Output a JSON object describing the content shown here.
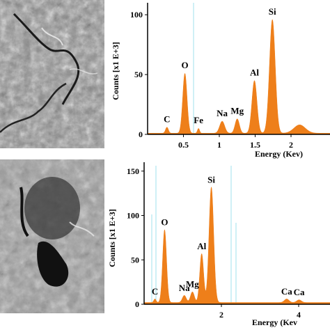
{
  "images": {
    "top_alt": "SEM micrograph (fracture surface)",
    "bottom_alt": "SEM micrograph (porous surface)"
  },
  "chart_data": [
    {
      "type": "area",
      "xlabel": "Energy (Kev)",
      "ylabel": "Counts [x1 E+3]",
      "xlim": [
        0,
        2.2
      ],
      "ylim": [
        0,
        110
      ],
      "xticks": [
        0.5,
        1,
        1.5,
        2
      ],
      "xtick_labels": [
        "0.5",
        "1",
        "1.5",
        "2"
      ],
      "yticks": [
        0,
        50,
        100
      ],
      "ytick_labels": [
        "0",
        "50",
        "100"
      ],
      "grid": false,
      "color": "#ee7f1a",
      "peaks": [
        {
          "x": 0.27,
          "y": 5,
          "w": 0.02
        },
        {
          "x": 0.52,
          "y": 50,
          "w": 0.03
        },
        {
          "x": 0.71,
          "y": 4,
          "w": 0.015
        },
        {
          "x": 1.04,
          "y": 10,
          "w": 0.035
        },
        {
          "x": 1.25,
          "y": 12,
          "w": 0.03
        },
        {
          "x": 1.49,
          "y": 44,
          "w": 0.035
        },
        {
          "x": 1.74,
          "y": 95,
          "w": 0.04
        },
        {
          "x": 2.12,
          "y": 7,
          "w": 0.08
        }
      ],
      "baseline": 1,
      "annotations": [
        {
          "label": "C",
          "x": 0.27,
          "y": 5
        },
        {
          "label": "O",
          "x": 0.52,
          "y": 50
        },
        {
          "label": "Fe",
          "x": 0.71,
          "y": 4
        },
        {
          "label": "Na",
          "x": 1.04,
          "y": 10
        },
        {
          "label": "Mg",
          "x": 1.25,
          "y": 12
        },
        {
          "label": "Al",
          "x": 1.49,
          "y": 44
        },
        {
          "label": "Si",
          "x": 1.74,
          "y": 95
        }
      ]
    },
    {
      "type": "area",
      "xlabel": "Energy (Kev",
      "ylabel": "Counts [x1 E+3]",
      "xlim": [
        0,
        4.8
      ],
      "ylim": [
        0,
        160
      ],
      "xticks": [
        2,
        4
      ],
      "xtick_labels": [
        "2",
        "4"
      ],
      "yticks": [
        0,
        50,
        100,
        150
      ],
      "ytick_labels": [
        "0",
        "50",
        "100",
        "150"
      ],
      "grid": false,
      "color": "#ee7f1a",
      "peaks": [
        {
          "x": 0.28,
          "y": 4,
          "w": 0.03
        },
        {
          "x": 0.53,
          "y": 82,
          "w": 0.05
        },
        {
          "x": 1.04,
          "y": 8,
          "w": 0.05
        },
        {
          "x": 1.25,
          "y": 12,
          "w": 0.05
        },
        {
          "x": 1.49,
          "y": 55,
          "w": 0.05
        },
        {
          "x": 1.74,
          "y": 130,
          "w": 0.06
        },
        {
          "x": 3.69,
          "y": 4,
          "w": 0.06
        },
        {
          "x": 4.01,
          "y": 3,
          "w": 0.06
        }
      ],
      "baseline": 2,
      "annotations": [
        {
          "label": "C",
          "x": 0.28,
          "y": 4
        },
        {
          "label": "O",
          "x": 0.53,
          "y": 82
        },
        {
          "label": "Na",
          "x": 1.04,
          "y": 8
        },
        {
          "label": "Mg",
          "x": 1.25,
          "y": 12
        },
        {
          "label": "Al",
          "x": 1.49,
          "y": 55
        },
        {
          "label": "Si",
          "x": 1.74,
          "y": 130
        },
        {
          "label": "Ca",
          "x": 3.69,
          "y": 4
        },
        {
          "label": "Ca",
          "x": 4.01,
          "y": 3
        }
      ]
    }
  ]
}
